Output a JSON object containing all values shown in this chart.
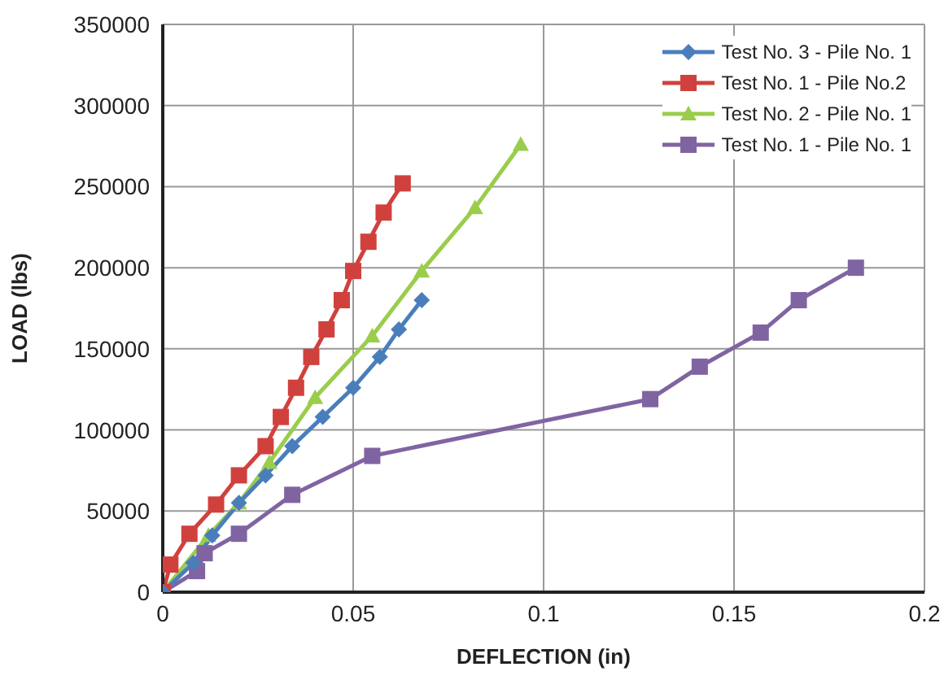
{
  "chart_data": {
    "type": "line",
    "xlabel": "DEFLECTION (in)",
    "ylabel": "LOAD (lbs)",
    "xlim": [
      0,
      0.2
    ],
    "xticks": [
      0,
      0.05,
      0.1,
      0.15,
      0.2
    ],
    "ylim": [
      0,
      350000
    ],
    "yticks": [
      0,
      50000,
      100000,
      150000,
      200000,
      250000,
      300000,
      350000
    ],
    "grid": true,
    "legend": "top right",
    "series": [
      {
        "name": "Test No. 3 - Pile No. 1",
        "color": "#4a7ebb",
        "marker": "diamond",
        "x": [
          0,
          0.008,
          0.013,
          0.02,
          0.027,
          0.034,
          0.042,
          0.05,
          0.057,
          0.062,
          0.068
        ],
        "values": [
          0,
          18000,
          35000,
          55000,
          72000,
          90000,
          108000,
          126000,
          145000,
          162000,
          180000
        ]
      },
      {
        "name": "Test No. 1 - Pile No.2",
        "color": "#d0413e",
        "marker": "square",
        "x": [
          0,
          0.002,
          0.007,
          0.014,
          0.02,
          0.027,
          0.031,
          0.035,
          0.039,
          0.043,
          0.047,
          0.05,
          0.054,
          0.058,
          0.063
        ],
        "values": [
          0,
          17000,
          36000,
          54000,
          72000,
          90000,
          108000,
          126000,
          145000,
          162000,
          180000,
          198000,
          216000,
          234000,
          252000
        ]
      },
      {
        "name": "Test No. 2 - Pile No. 1",
        "color": "#9acd4c",
        "marker": "triangle",
        "x": [
          0,
          0.012,
          0.02,
          0.028,
          0.04,
          0.055,
          0.068,
          0.082,
          0.094
        ],
        "values": [
          0,
          35000,
          55000,
          80000,
          120000,
          158000,
          198000,
          237000,
          276000
        ]
      },
      {
        "name": "Test No. 1 - Pile No. 1",
        "color": "#8064a2",
        "marker": "square",
        "x": [
          0,
          0.009,
          0.011,
          0.02,
          0.034,
          0.055,
          0.128,
          0.141,
          0.157,
          0.167,
          0.182
        ],
        "values": [
          0,
          13000,
          24000,
          36000,
          60000,
          84000,
          119000,
          139000,
          160000,
          180000,
          200000
        ]
      }
    ]
  }
}
